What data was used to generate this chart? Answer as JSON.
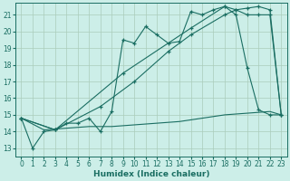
{
  "xlabel": "Humidex (Indice chaleur)",
  "background_color": "#cceee8",
  "grid_color": "#aaccbb",
  "line_color": "#1a6e62",
  "xlim": [
    -0.5,
    23.5
  ],
  "ylim": [
    12.5,
    21.7
  ],
  "yticks": [
    13,
    14,
    15,
    16,
    17,
    18,
    19,
    20,
    21
  ],
  "xticks": [
    0,
    1,
    2,
    3,
    4,
    5,
    6,
    7,
    8,
    9,
    10,
    11,
    12,
    13,
    14,
    15,
    16,
    17,
    18,
    19,
    20,
    21,
    22,
    23
  ],
  "series1": [
    [
      0,
      14.8
    ],
    [
      1,
      13.0
    ],
    [
      2,
      14.0
    ],
    [
      3,
      14.1
    ],
    [
      4,
      14.5
    ],
    [
      5,
      14.5
    ],
    [
      6,
      14.8
    ],
    [
      7,
      14.0
    ],
    [
      8,
      15.2
    ],
    [
      9,
      19.5
    ],
    [
      10,
      19.3
    ],
    [
      11,
      20.3
    ],
    [
      12,
      19.8
    ],
    [
      13,
      19.3
    ],
    [
      14,
      19.4
    ],
    [
      15,
      21.2
    ],
    [
      16,
      21.0
    ],
    [
      17,
      21.3
    ],
    [
      18,
      21.5
    ],
    [
      19,
      21.0
    ],
    [
      20,
      17.8
    ],
    [
      21,
      15.3
    ],
    [
      22,
      15.0
    ],
    [
      23,
      15.0
    ]
  ],
  "series2": [
    [
      0,
      14.8
    ],
    [
      3,
      14.1
    ],
    [
      9,
      17.5
    ],
    [
      15,
      20.2
    ],
    [
      18,
      21.5
    ],
    [
      19,
      21.3
    ],
    [
      20,
      21.4
    ],
    [
      21,
      21.5
    ],
    [
      22,
      21.3
    ],
    [
      23,
      15.0
    ]
  ],
  "series3": [
    [
      0,
      14.8
    ],
    [
      3,
      14.1
    ],
    [
      7,
      15.5
    ],
    [
      10,
      17.0
    ],
    [
      13,
      18.8
    ],
    [
      15,
      19.8
    ],
    [
      18,
      21.0
    ],
    [
      19,
      21.3
    ],
    [
      20,
      21.0
    ],
    [
      21,
      21.0
    ],
    [
      22,
      21.0
    ],
    [
      23,
      15.0
    ]
  ],
  "series4": [
    [
      0,
      14.8
    ],
    [
      2,
      14.1
    ],
    [
      4,
      14.2
    ],
    [
      6,
      14.3
    ],
    [
      8,
      14.3
    ],
    [
      10,
      14.4
    ],
    [
      12,
      14.5
    ],
    [
      14,
      14.6
    ],
    [
      16,
      14.8
    ],
    [
      18,
      15.0
    ],
    [
      20,
      15.1
    ],
    [
      22,
      15.2
    ],
    [
      23,
      15.0
    ]
  ]
}
